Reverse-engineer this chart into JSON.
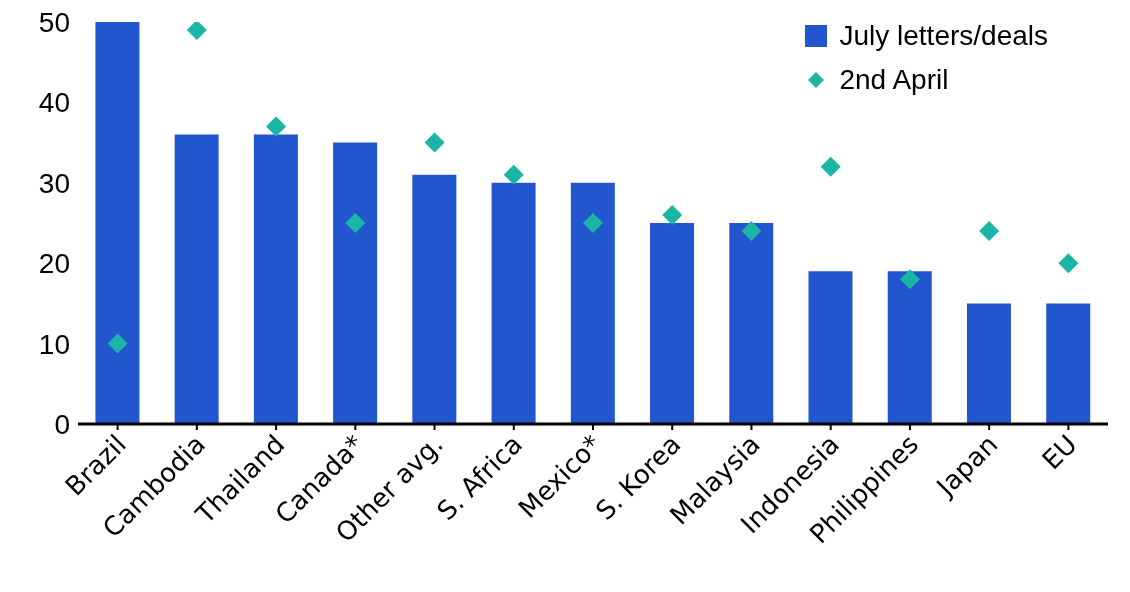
{
  "chart_data": {
    "type": "bar",
    "categories": [
      "Brazil",
      "Cambodia",
      "Thailand",
      "Canada*",
      "Other avg.",
      "S. Africa",
      "Mexico*",
      "S. Korea",
      "Malaysia",
      "Indonesia",
      "Philippines",
      "Japan",
      "EU"
    ],
    "series": [
      {
        "name": "July letters/deals",
        "color": "#2256cf",
        "values": [
          50,
          36,
          36,
          35,
          31,
          30,
          30,
          25,
          25,
          19,
          19,
          15,
          15
        ]
      },
      {
        "name": "2nd April",
        "type": "scatter",
        "color": "#1ab5a5",
        "values": [
          10,
          49,
          37,
          25,
          35,
          31,
          25,
          26,
          24,
          32,
          18,
          24,
          20
        ]
      }
    ],
    "ylim": [
      0,
      50
    ],
    "yticks": [
      0,
      10,
      20,
      30,
      40,
      50
    ],
    "grid": false,
    "legend": "top right",
    "marker": "diamond"
  }
}
